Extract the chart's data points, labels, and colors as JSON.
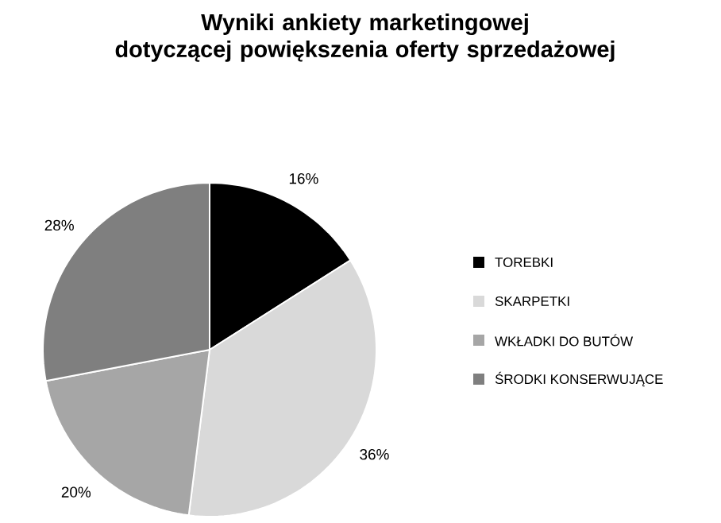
{
  "chart_data": {
    "type": "pie",
    "title": "Wyniki ankiety marketingowej\ndotyczącej powiększenia oferty sprzedażowej",
    "categories": [
      "TOREBKI",
      "SKARPETKI",
      "WKŁADKI DO BUTÓW",
      "ŚRODKI KONSERWUJĄCE"
    ],
    "values": [
      16,
      36,
      20,
      28
    ],
    "colors": [
      "#000000",
      "#d9d9d9",
      "#a6a6a6",
      "#7f7f7f"
    ],
    "value_labels": [
      "16%",
      "36%",
      "20%",
      "28%"
    ],
    "legend": "right"
  }
}
